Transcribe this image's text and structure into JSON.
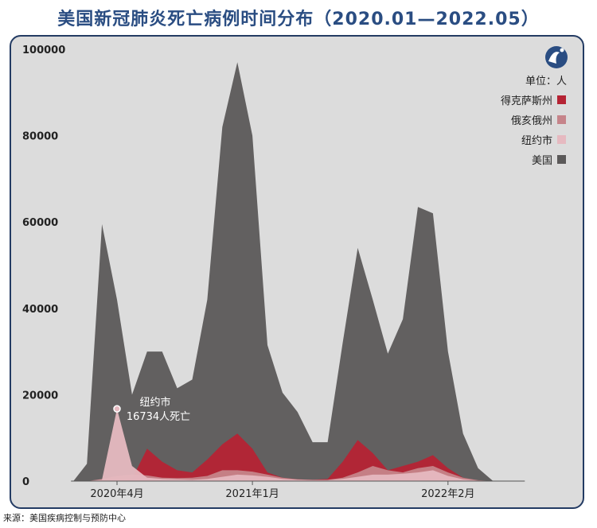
{
  "title": "美国新冠肺炎死亡病例时间分布（2020.01—2022.05）",
  "source": "来源：美国疾病控制与预防中心",
  "colors": {
    "title": "#2a4d82",
    "background": "#dcdcdc",
    "border": "#233b63",
    "us": "#5b5959",
    "texas": "#b52334",
    "ohio": "#c6848a",
    "nyc": "#e6b9c0"
  },
  "logo": {
    "icon": "wave-logo-icon"
  },
  "chart_data": {
    "type": "area",
    "unit_label": "单位：人",
    "ylim": [
      0,
      100000
    ],
    "yticks": [
      "100000",
      "80000",
      "60000",
      "40000",
      "20000",
      "0"
    ],
    "ytick_values": [
      100000,
      80000,
      60000,
      40000,
      20000,
      0
    ],
    "xlim": [
      0,
      29
    ],
    "xticks": [
      {
        "label": "2020年4月",
        "x": 2
      },
      {
        "label": "2021年1月",
        "x": 11
      },
      {
        "label": "2022年2月",
        "x": 24
      }
    ],
    "x": [
      -0.9,
      0,
      1,
      2,
      3,
      4,
      5,
      6,
      7,
      8,
      9,
      10,
      11,
      12,
      13,
      14,
      15,
      16,
      17,
      18,
      19,
      20,
      21,
      22,
      23,
      24,
      25,
      26,
      27,
      28
    ],
    "series": [
      {
        "name": "美国",
        "color": "#5b5959",
        "values": [
          0,
          4000,
          59500,
          42000,
          20000,
          30000,
          30000,
          21500,
          23500,
          42000,
          82000,
          97000,
          80000,
          31500,
          20500,
          16000,
          9000,
          9000,
          32000,
          54000,
          42000,
          29500,
          37500,
          63500,
          62000,
          30000,
          11000,
          3000,
          0,
          0
        ]
      },
      {
        "name": "得克萨斯州",
        "color": "#b52334",
        "values": [
          0,
          0,
          100,
          300,
          500,
          7500,
          4500,
          2500,
          2000,
          5000,
          8500,
          11000,
          7500,
          2000,
          800,
          400,
          300,
          500,
          4500,
          9500,
          6500,
          2500,
          3500,
          4500,
          6000,
          3000,
          800,
          100,
          0,
          0
        ]
      },
      {
        "name": "俄亥俄州",
        "color": "#c6848a",
        "values": [
          0,
          0,
          500,
          1200,
          1500,
          1300,
          800,
          700,
          800,
          1200,
          2500,
          2500,
          2200,
          1500,
          800,
          400,
          300,
          300,
          800,
          2000,
          3500,
          2500,
          2000,
          3000,
          3500,
          2000,
          800,
          200,
          0,
          0
        ]
      },
      {
        "name": "纽约市",
        "color": "#e6b9c0",
        "values": [
          0,
          0,
          300,
          16734,
          3500,
          800,
          500,
          400,
          300,
          500,
          1000,
          1500,
          1300,
          1000,
          500,
          300,
          200,
          200,
          500,
          1000,
          1500,
          1500,
          1700,
          2000,
          2500,
          1200,
          400,
          100,
          0,
          0
        ]
      }
    ],
    "legend": {
      "placement": "top-right",
      "items": [
        "得克萨斯州",
        "俄亥俄州",
        "纽约市",
        "美国"
      ]
    },
    "annotation": {
      "series": "纽约市",
      "x": 2,
      "y": 16734,
      "line1": "纽约市",
      "line2": "16734人死亡"
    },
    "grid": false
  }
}
